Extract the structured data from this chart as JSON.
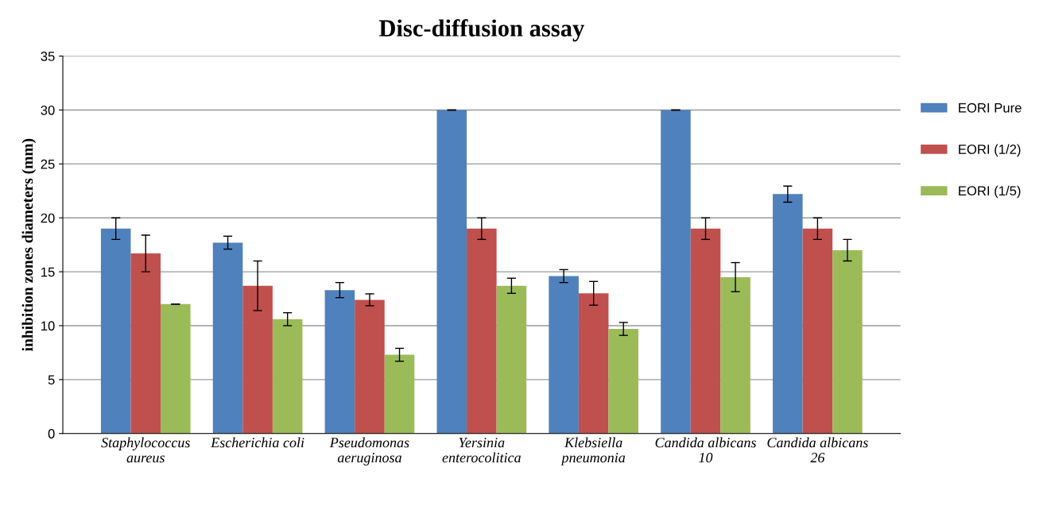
{
  "chart_data": {
    "type": "bar",
    "title": "Disc-diffusion assay",
    "ylabel": "inhibition zones diameters (mm)",
    "categories": [
      "Staphylococcus\naureus",
      "Escherichia coli",
      "Pseudomonas\naeruginosa",
      "Yersinia\nenterocolitica",
      "Klebsiella\npneumonia",
      "Candida albicans\n10",
      "Candida albicans\n26"
    ],
    "series": [
      {
        "name": "EORI Pure",
        "color": "#4f81bd",
        "values": [
          19,
          17.7,
          13.3,
          30,
          14.6,
          30,
          22.2
        ],
        "errors": [
          1,
          0.6,
          0.7,
          0,
          0.6,
          0,
          0.75
        ]
      },
      {
        "name": "EORI (1/2)",
        "color": "#c0504d",
        "values": [
          16.7,
          13.7,
          12.4,
          19,
          13,
          19,
          19
        ],
        "errors": [
          1.7,
          2.3,
          0.55,
          1,
          1.1,
          1,
          1
        ]
      },
      {
        "name": "EORI (1/5)",
        "color": "#9bbb59",
        "values": [
          12,
          10.6,
          7.3,
          13.7,
          9.7,
          14.5,
          17
        ],
        "errors": [
          0,
          0.6,
          0.6,
          0.7,
          0.6,
          1.35,
          1
        ]
      }
    ],
    "ylim": [
      0,
      35
    ],
    "yticks": [
      0,
      5,
      10,
      15,
      20,
      25,
      30,
      35
    ],
    "grid": "y",
    "legend": "right"
  }
}
